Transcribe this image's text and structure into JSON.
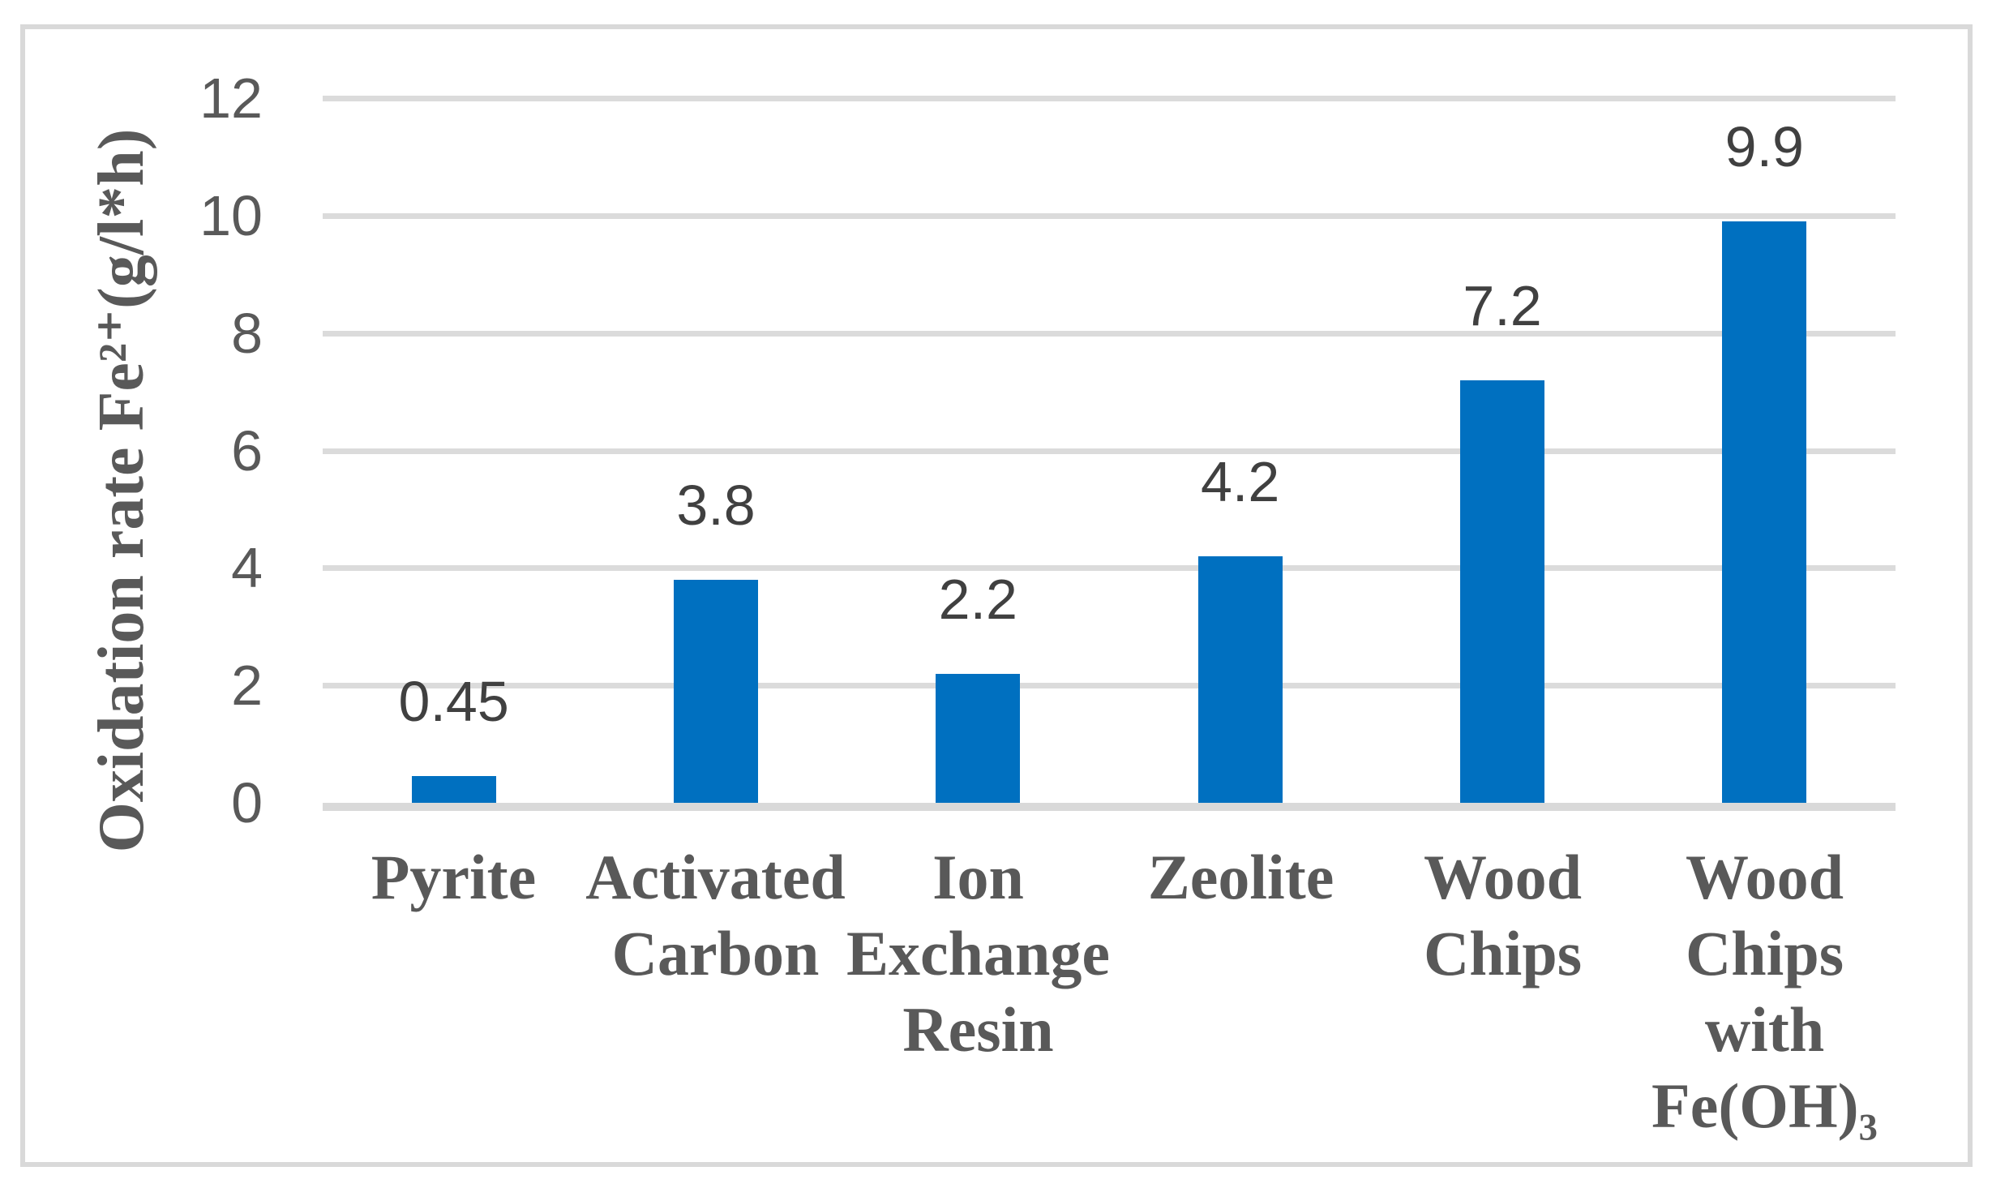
{
  "chart_data": {
    "type": "bar",
    "title": "",
    "ylabel": "Oxidation rate Fe²⁺(g/l*h)",
    "xlabel": "",
    "categories": [
      "Pyrite",
      "Activated Carbon",
      "Ion Exchange Resin",
      "Zeolite",
      "Wood Chips",
      "Wood Chips with Fe(OH)₃"
    ],
    "values": [
      0.45,
      3.8,
      2.2,
      4.2,
      7.2,
      9.9
    ],
    "data_labels": [
      "0.45",
      "3.8",
      "2.2",
      "4.2",
      "7.2",
      "9.9"
    ],
    "ylim": [
      0,
      12
    ],
    "ytick_step": 2,
    "ytick_labels": [
      "0",
      "2",
      "4",
      "6",
      "8",
      "10",
      "12"
    ],
    "grid": true,
    "legend": "none",
    "colors": {
      "bar": "#0070C0",
      "gridline": "#DBDBDB",
      "axis_line": "#D9D9D9",
      "tick_label": "#595959",
      "category_label": "#595959",
      "data_label": "#404040",
      "axis_title": "#595959",
      "frame_border": "#D9D9D9",
      "background": "#FFFFFF"
    }
  }
}
